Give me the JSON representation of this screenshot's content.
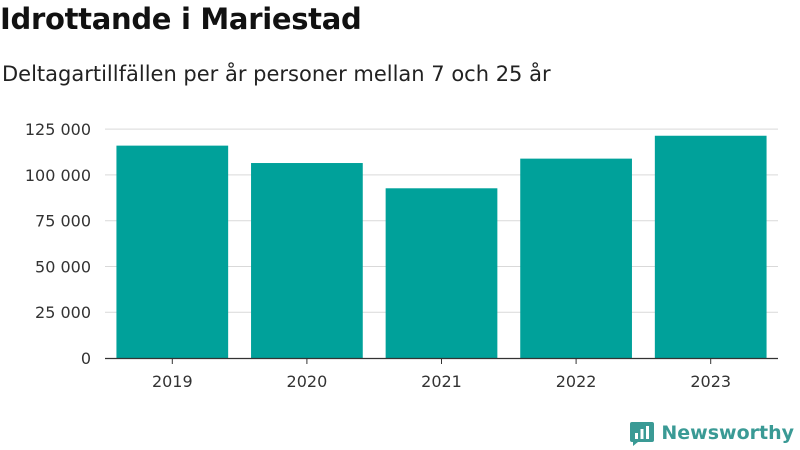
{
  "page": {
    "title": "Idrottande i Mariestad",
    "subtitle": "Deltagartillfällen per år personer mellan 7 och 25 år"
  },
  "brand": {
    "name": "Newsworthy",
    "icon": "newsworthy-logo-icon",
    "color": "#3a9a95"
  },
  "chart_data": {
    "type": "bar",
    "categories": [
      "2019",
      "2020",
      "2021",
      "2022",
      "2023"
    ],
    "values": [
      116000,
      106500,
      92700,
      108900,
      121400
    ],
    "ylim": [
      0,
      130000
    ],
    "yticks": [
      0,
      25000,
      50000,
      75000,
      100000,
      125000
    ],
    "ytick_labels": [
      "0",
      "25 000",
      "50 000",
      "75 000",
      "100 000",
      "125 000"
    ],
    "grid": true,
    "bar_color": "#00a19a",
    "xlabel": "",
    "ylabel": ""
  }
}
